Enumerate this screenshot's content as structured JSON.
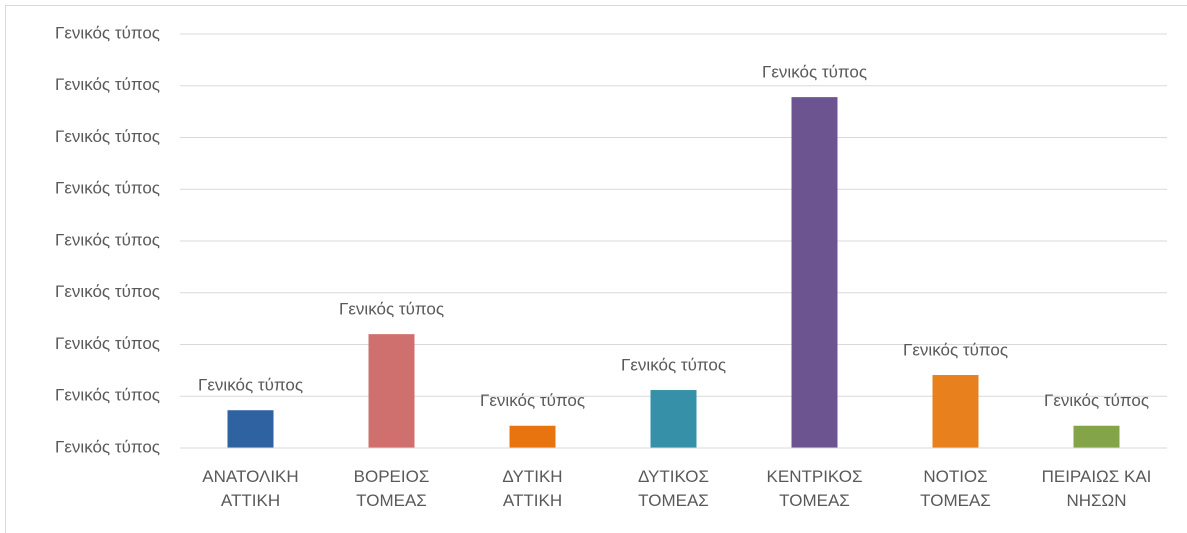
{
  "chart_data": {
    "type": "bar",
    "categories": [
      "ΑΝΑΤΟΛΙΚΗ\nΑΤΤΙΚΗ",
      "ΒΟΡΕΙΟΣ\nΤΟΜΕΑΣ",
      "ΔΥΤΙΚΗ\nΑΤΤΙΚΗ",
      "ΔΥΤΙΚΟΣ\nΤΟΜΕΑΣ",
      "ΚΕΝΤΡΙΚΟΣ\nΤΟΜΕΑΣ",
      "ΝΟΤΙΟΣ\nΤΟΜΕΑΣ",
      "ΠΕΙΡΑΙΩΣ ΚΑΙ\nΝΗΣΩΝ"
    ],
    "values": [
      0.73,
      2.2,
      0.43,
      1.12,
      6.78,
      1.41,
      0.43
    ],
    "value_labels": [
      "Γενικός τύπος",
      "Γενικός τύπος",
      "Γενικός τύπος",
      "Γενικός τύπος",
      "Γενικός τύπος",
      "Γενικός τύπος",
      "Γενικός τύπος"
    ],
    "colors": [
      "#2f62a0",
      "#d0706e",
      "#e8740f",
      "#3590a8",
      "#6c5490",
      "#e8801e",
      "#84a448"
    ],
    "ylim": [
      0,
      8
    ],
    "yticks": [
      {
        "value": 0,
        "label": "Γενικός τύπος"
      },
      {
        "value": 1,
        "label": "Γενικός τύπος"
      },
      {
        "value": 2,
        "label": "Γενικός τύπος"
      },
      {
        "value": 3,
        "label": "Γενικός τύπος"
      },
      {
        "value": 4,
        "label": "Γενικός τύπος"
      },
      {
        "value": 5,
        "label": "Γενικός τύπος"
      },
      {
        "value": 6,
        "label": "Γενικός τύπος"
      },
      {
        "value": 7,
        "label": "Γενικός τύπος"
      },
      {
        "value": 8,
        "label": "Γενικός τύπος"
      }
    ],
    "grid": true
  }
}
